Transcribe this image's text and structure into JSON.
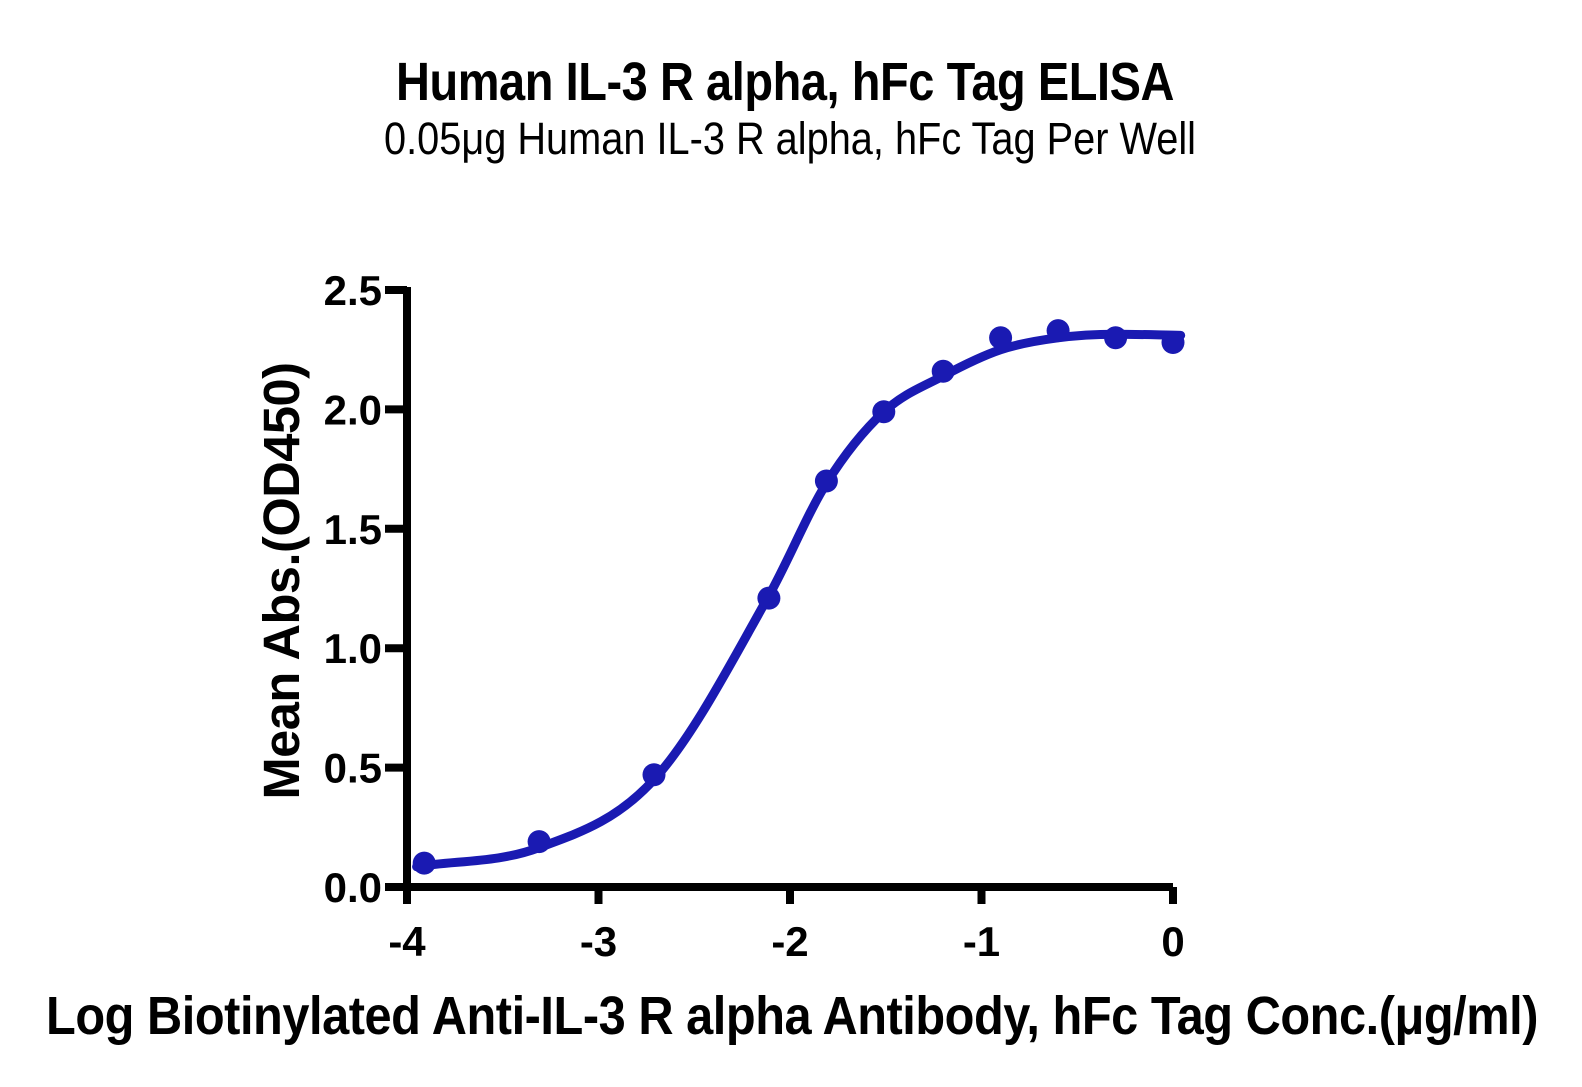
{
  "chart_data": {
    "type": "scatter",
    "title": "Human IL-3 R alpha, hFc Tag ELISA",
    "subtitle": "0.05μg Human IL-3 R alpha, hFc Tag Per Well",
    "xlabel": "Log Biotinylated Anti-IL-3 R alpha Antibody, hFc Tag Conc.(μg/ml)",
    "ylabel": "Mean Abs.(OD450)",
    "x": [
      -3.91,
      -3.31,
      -2.71,
      -2.11,
      -1.81,
      -1.51,
      -1.2,
      -0.9,
      -0.6,
      -0.3,
      0
    ],
    "y": [
      0.1,
      0.19,
      0.47,
      1.21,
      1.7,
      1.99,
      2.16,
      2.3,
      2.33,
      2.3,
      2.28
    ],
    "series_name": "Biotinylated Anti-IL-3 R alpha Antibody, hFc Tag",
    "fit_curve": {
      "type": "4PL sigmoid fit line",
      "anchors_x": [
        -3.95,
        -3.31,
        -2.71,
        -2.11,
        -1.81,
        -1.51,
        -1.2,
        -0.9,
        -0.6,
        -0.3,
        0.04
      ],
      "anchors_y": [
        0.085,
        0.165,
        0.45,
        1.22,
        1.69,
        1.99,
        2.14,
        2.25,
        2.3,
        2.315,
        2.31
      ]
    },
    "xlim": [
      -4,
      0
    ],
    "ylim": [
      0.0,
      2.5
    ],
    "x_ticks": [
      {
        "value": -4,
        "label": "-4"
      },
      {
        "value": -3,
        "label": "-3"
      },
      {
        "value": -2,
        "label": "-2"
      },
      {
        "value": -1,
        "label": "-1"
      },
      {
        "value": 0,
        "label": "0"
      }
    ],
    "y_ticks": [
      {
        "value": 0.0,
        "label": "0.0"
      },
      {
        "value": 0.5,
        "label": "0.5"
      },
      {
        "value": 1.0,
        "label": "1.0"
      },
      {
        "value": 1.5,
        "label": "1.5"
      },
      {
        "value": 2.0,
        "label": "2.0"
      },
      {
        "value": 2.5,
        "label": "2.5"
      }
    ],
    "grid": false,
    "legend": false,
    "colors": {
      "curve": "#1a1ab2",
      "marker": "#1a1ab2",
      "axis": "#000000",
      "text": "#000000",
      "background": "#ffffff"
    }
  }
}
